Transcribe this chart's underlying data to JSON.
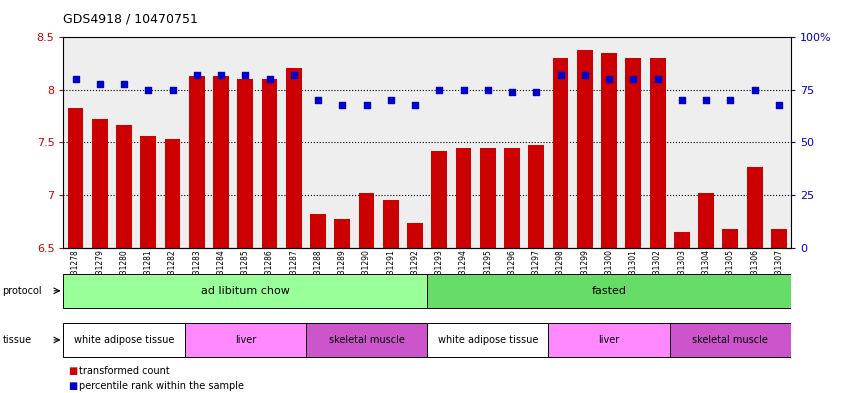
{
  "title": "GDS4918 / 10470751",
  "samples": [
    "GSM1131278",
    "GSM1131279",
    "GSM1131280",
    "GSM1131281",
    "GSM1131282",
    "GSM1131283",
    "GSM1131284",
    "GSM1131285",
    "GSM1131286",
    "GSM1131287",
    "GSM1131288",
    "GSM1131289",
    "GSM1131290",
    "GSM1131291",
    "GSM1131292",
    "GSM1131293",
    "GSM1131294",
    "GSM1131295",
    "GSM1131296",
    "GSM1131297",
    "GSM1131298",
    "GSM1131299",
    "GSM1131300",
    "GSM1131301",
    "GSM1131302",
    "GSM1131303",
    "GSM1131304",
    "GSM1131305",
    "GSM1131306",
    "GSM1131307"
  ],
  "bar_values": [
    7.83,
    7.72,
    7.67,
    7.56,
    7.53,
    8.13,
    8.13,
    8.1,
    8.1,
    8.21,
    6.82,
    6.77,
    7.02,
    6.95,
    6.73,
    7.42,
    7.45,
    7.45,
    7.45,
    7.48,
    8.3,
    8.38,
    8.35,
    8.3,
    8.3,
    6.65,
    7.02,
    6.68,
    7.27,
    6.68
  ],
  "percentile_values": [
    80,
    78,
    78,
    75,
    75,
    82,
    82,
    82,
    80,
    82,
    70,
    68,
    68,
    70,
    68,
    75,
    75,
    75,
    74,
    74,
    82,
    82,
    80,
    80,
    80,
    70,
    70,
    70,
    75,
    68
  ],
  "ylim_left": [
    6.5,
    8.5
  ],
  "ylim_right": [
    0,
    100
  ],
  "yticks_left": [
    6.5,
    7.0,
    7.5,
    8.0,
    8.5
  ],
  "ytick_labels_left": [
    "6.5",
    "7",
    "7.5",
    "8",
    "8.5"
  ],
  "yticks_right": [
    0,
    25,
    50,
    75,
    100
  ],
  "ytick_labels_right": [
    "0",
    "25",
    "50",
    "75",
    "100%"
  ],
  "bar_color": "#CC0000",
  "dot_color": "#0000CC",
  "bar_bottom": 6.5,
  "protocol_groups": [
    {
      "label": "ad libitum chow",
      "start": 0,
      "end": 14,
      "color": "#99FF99"
    },
    {
      "label": "fasted",
      "start": 15,
      "end": 29,
      "color": "#66DD66"
    }
  ],
  "tissue_groups": [
    {
      "label": "white adipose tissue",
      "start": 0,
      "end": 4,
      "color": "#FFFFFF"
    },
    {
      "label": "liver",
      "start": 5,
      "end": 9,
      "color": "#FF88FF"
    },
    {
      "label": "skeletal muscle",
      "start": 10,
      "end": 14,
      "color": "#CC55CC"
    },
    {
      "label": "white adipose tissue",
      "start": 15,
      "end": 19,
      "color": "#FFFFFF"
    },
    {
      "label": "liver",
      "start": 20,
      "end": 24,
      "color": "#FF88FF"
    },
    {
      "label": "skeletal muscle",
      "start": 25,
      "end": 29,
      "color": "#CC55CC"
    }
  ],
  "dotted_line_values": [
    8.0,
    7.5,
    7.0
  ],
  "legend_items": [
    {
      "label": "transformed count",
      "color": "#CC0000"
    },
    {
      "label": "percentile rank within the sample",
      "color": "#0000CC"
    }
  ],
  "bg_color": "#FFFFFF",
  "plot_bg_color": "#EEEEEE"
}
